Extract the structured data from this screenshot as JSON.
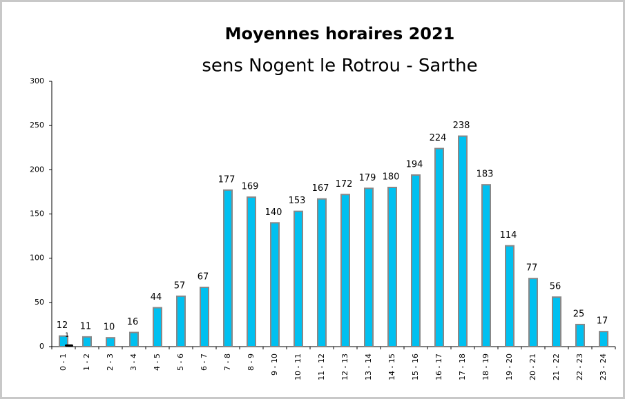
{
  "chart_data": {
    "type": "bar",
    "title": "Moyennes horaires 2021",
    "subtitle": "sens Nogent le Rotrou - Sarthe",
    "categories": [
      "0 - 1",
      "1 - 2",
      "2 - 3",
      "3 - 4",
      "4 - 5",
      "5 - 6",
      "6 - 7",
      "7 - 8",
      "8 - 9",
      "9 - 10",
      "10 - 11",
      "11 - 12",
      "12 - 13",
      "13 - 14",
      "14 - 15",
      "15 - 16",
      "16 - 17",
      "17 - 18",
      "18 - 19",
      "19 - 20",
      "20 - 21",
      "21 - 22",
      "22 - 23",
      "23 - 24"
    ],
    "values": [
      12,
      11,
      10,
      16,
      44,
      57,
      67,
      177,
      169,
      140,
      153,
      167,
      172,
      179,
      180,
      194,
      224,
      238,
      183,
      114,
      77,
      56,
      25,
      17
    ],
    "color": "#00c0f0",
    "edge_color": "#888888",
    "annotation": {
      "x": "0 - 1",
      "value": 1,
      "color": "#000000"
    },
    "ylim": [
      0,
      300
    ],
    "yticks": [
      0,
      50,
      100,
      150,
      200,
      250,
      300
    ],
    "grid": false
  }
}
